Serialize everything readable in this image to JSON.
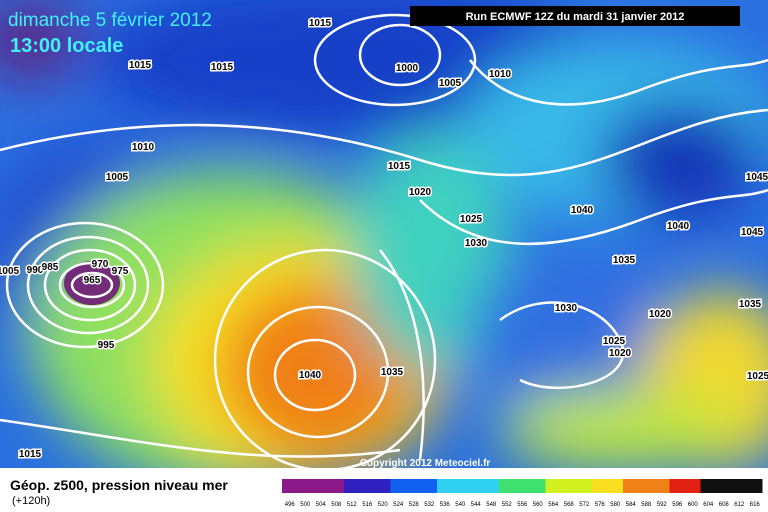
{
  "header": {
    "date": "dimanche 5 février 2012",
    "time": "13:00 locale",
    "run": "Run ECMWF 12Z du mardi 31 janvier 2012"
  },
  "map": {
    "isobar_labels": [
      "1015",
      "1015",
      "1015",
      "1000",
      "1005",
      "1010",
      "1010",
      "1005",
      "1015",
      "1020",
      "1025",
      "1030",
      "1040",
      "1040",
      "1045",
      "1045",
      "1035",
      "1030",
      "1020",
      "1035",
      "1025",
      "1020",
      "1040",
      "1035",
      "1025",
      "995",
      "975",
      "970",
      "965",
      "990",
      "985",
      "1005",
      "1015"
    ],
    "copyright": "Copyright 2012 Meteociel.fr"
  },
  "footer": {
    "title": "Géop. z500, pression niveau mer",
    "lead": "(+120h)",
    "scale": [
      496,
      500,
      504,
      508,
      512,
      516,
      520,
      524,
      528,
      532,
      536,
      540,
      544,
      548,
      552,
      556,
      560,
      564,
      568,
      572,
      576,
      580,
      584,
      588,
      592,
      596,
      600,
      604,
      608,
      612,
      616
    ]
  }
}
